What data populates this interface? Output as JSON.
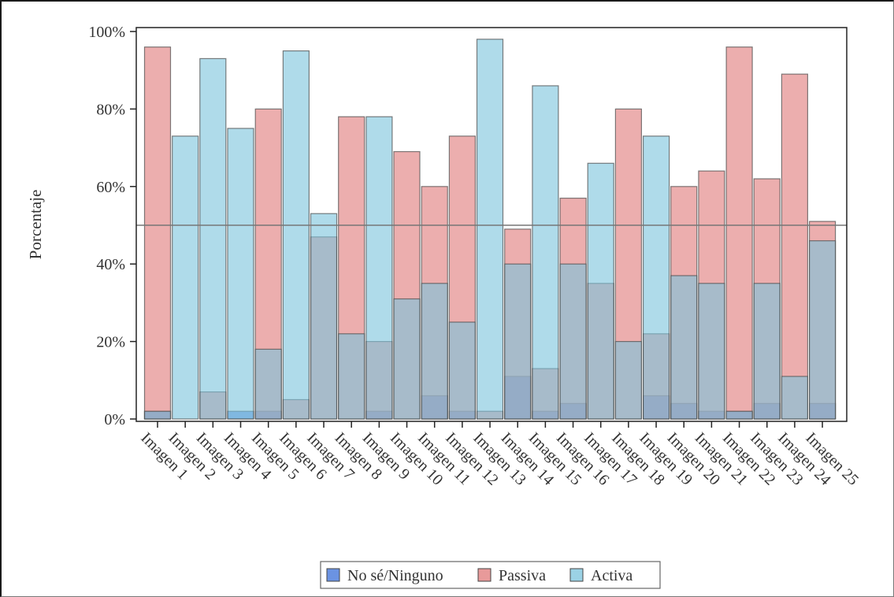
{
  "chart_data": {
    "type": "bar",
    "overlay": true,
    "ylabel": "Porcentaje",
    "ylim": [
      0,
      100
    ],
    "y_ticks": [
      "0%",
      "20%",
      "40%",
      "60%",
      "80%",
      "100%"
    ],
    "y_tick_values": [
      0,
      20,
      40,
      60,
      80,
      100
    ],
    "reference_line": 50,
    "grid": false,
    "legend_position": "bottom",
    "categories": [
      "Imagen 1",
      "Imagen 2",
      "Imagen 3",
      "Imagen 4",
      "Imagen 5",
      "Imagen 6",
      "Imagen 7",
      "Imagen 8",
      "Imagen 9",
      "Imagen 10",
      "Imagen 11",
      "Imagen 12",
      "Imagen 13",
      "Imagen 14",
      "Imagen 15",
      "Imagen 16",
      "Imagen 17",
      "Imagen 18",
      "Imagen 19",
      "Imagen 20",
      "Imagen 21",
      "Imagen 22",
      "Imagen 23",
      "Imagen 24",
      "Imagen 25"
    ],
    "series": [
      {
        "name": "No sé/Ninguno",
        "color": "#3a6fd8",
        "values": [
          2,
          0,
          0,
          2,
          2,
          0,
          0,
          0,
          2,
          0,
          6,
          2,
          0,
          11,
          2,
          4,
          0,
          0,
          6,
          4,
          2,
          2,
          4,
          0,
          4
        ]
      },
      {
        "name": "Passiva",
        "color": "#e07878",
        "values": [
          96,
          0,
          7,
          0,
          80,
          5,
          47,
          78,
          20,
          69,
          60,
          73,
          2,
          49,
          13,
          57,
          35,
          80,
          22,
          60,
          64,
          96,
          62,
          89,
          51
        ]
      },
      {
        "name": "Activa",
        "color": "#79c3dc",
        "values": [
          2,
          73,
          93,
          75,
          18,
          95,
          53,
          22,
          78,
          31,
          35,
          25,
          98,
          40,
          86,
          40,
          66,
          20,
          73,
          37,
          35,
          2,
          35,
          11,
          46
        ]
      }
    ]
  }
}
